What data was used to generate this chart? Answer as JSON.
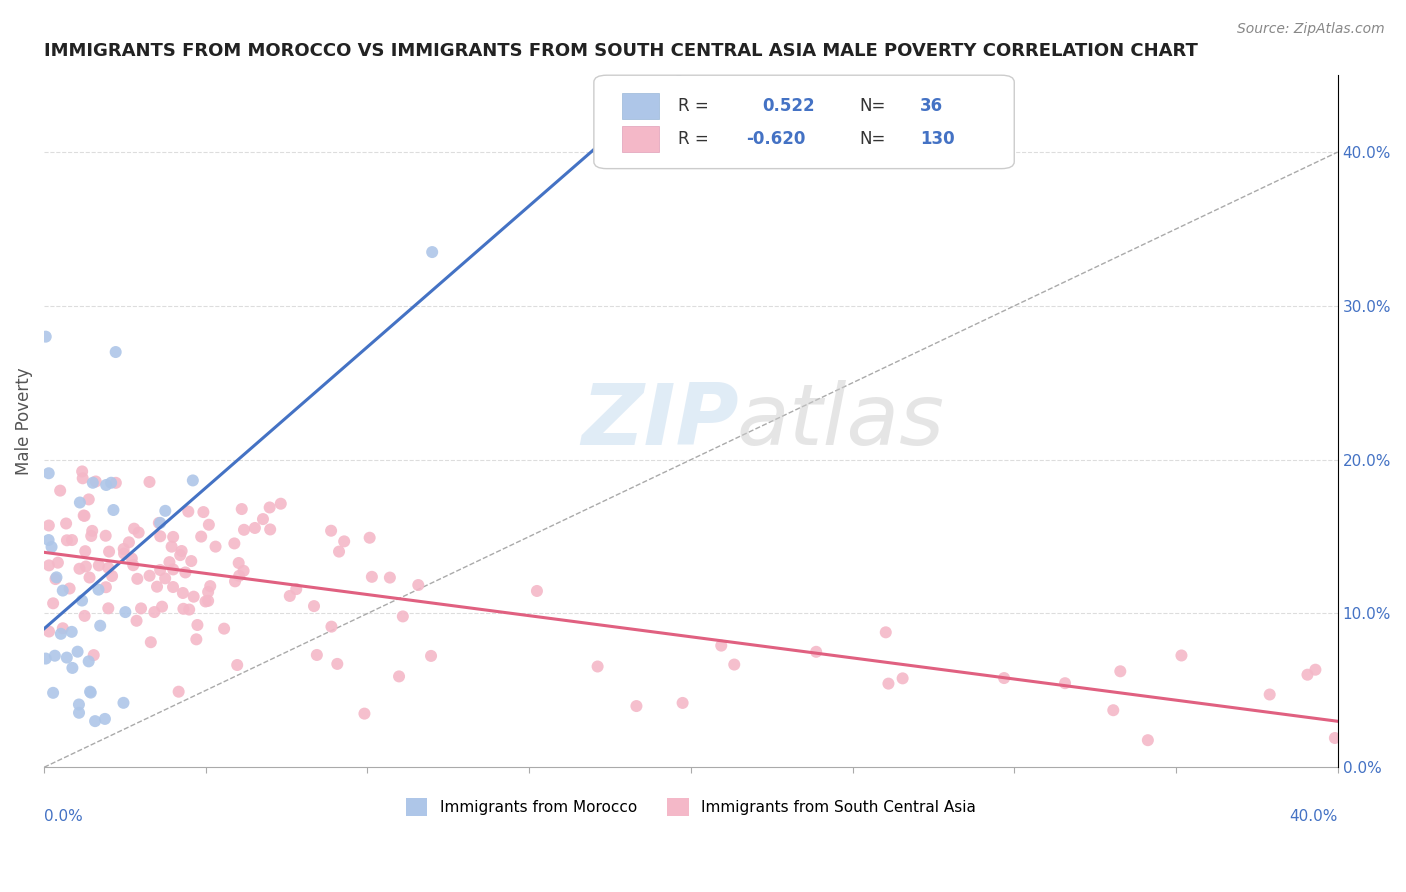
{
  "title": "IMMIGRANTS FROM MOROCCO VS IMMIGRANTS FROM SOUTH CENTRAL ASIA MALE POVERTY CORRELATION CHART",
  "source": "Source: ZipAtlas.com",
  "ylabel": "Male Poverty",
  "xmin": 0.0,
  "xmax": 0.4,
  "ymin": 0.0,
  "ymax": 0.45,
  "color_morocco": "#aec6e8",
  "color_sca": "#f4b8c8",
  "line_color_morocco": "#4472c4",
  "line_color_sca": "#e06080",
  "trendline_dashed_color": "#aaaaaa",
  "background_color": "#ffffff"
}
